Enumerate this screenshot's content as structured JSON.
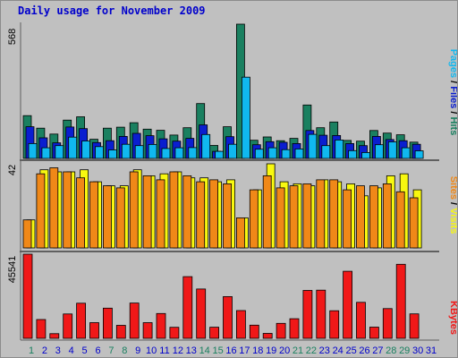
{
  "chart_title": "Daily usage for November 2009",
  "colors": {
    "background": "#c0c0c0",
    "hits": "#1a8060",
    "files": "#0a1ed0",
    "pages": "#10b8f0",
    "visits": "#f8f810",
    "sites": "#f08818",
    "kbytes": "#f01818",
    "separator": "#606060",
    "weekend_tick": "#1a8060",
    "weekday_tick": "#0000cc"
  },
  "chart_data": [
    {
      "type": "bar",
      "name": "hits-files-pages",
      "ymax_label": "568",
      "ylim": [
        0,
        568
      ],
      "categories": [
        "1",
        "2",
        "3",
        "4",
        "5",
        "6",
        "7",
        "8",
        "9",
        "10",
        "11",
        "12",
        "13",
        "14",
        "15",
        "16",
        "17",
        "18",
        "19",
        "20",
        "21",
        "22",
        "23",
        "24",
        "25",
        "26",
        "27",
        "28",
        "29",
        "30",
        "31"
      ],
      "series": [
        {
          "name": "Hits",
          "values": [
            181,
            128,
            103,
            162,
            176,
            81,
            128,
            132,
            151,
            124,
            119,
            99,
            130,
            232,
            55,
            134,
            568,
            77,
            91,
            75,
            85,
            226,
            130,
            154,
            76,
            73,
            118,
            107,
            100,
            69,
            0
          ]
        },
        {
          "name": "Files",
          "values": [
            134,
            87,
            66,
            133,
            126,
            67,
            75,
            93,
            106,
            96,
            83,
            73,
            85,
            142,
            30,
            92,
            0,
            58,
            71,
            68,
            63,
            118,
            98,
            97,
            63,
            54,
            93,
            80,
            75,
            60,
            0
          ]
        },
        {
          "name": "Pages",
          "values": [
            63,
            45,
            54,
            90,
            74,
            50,
            36,
            60,
            54,
            59,
            42,
            45,
            46,
            101,
            30,
            60,
            344,
            39,
            45,
            37,
            40,
            102,
            54,
            78,
            33,
            25,
            58,
            70,
            45,
            32,
            0
          ]
        }
      ],
      "right_label": [
        {
          "text": "Pages",
          "color": "#10b8f0"
        },
        {
          "text": " / ",
          "color": "#000000"
        },
        {
          "text": "Files",
          "color": "#0a1ed0"
        },
        {
          "text": " / ",
          "color": "#000000"
        },
        {
          "text": "Hits",
          "color": "#1a8060"
        }
      ]
    },
    {
      "type": "bar",
      "name": "visits-sites",
      "ymax_label": "42",
      "ylim": [
        0,
        42
      ],
      "categories": [
        "1",
        "2",
        "3",
        "4",
        "5",
        "6",
        "7",
        "8",
        "9",
        "10",
        "11",
        "12",
        "13",
        "14",
        "15",
        "16",
        "17",
        "18",
        "19",
        "20",
        "21",
        "22",
        "23",
        "24",
        "25",
        "26",
        "27",
        "28",
        "29",
        "30",
        "31"
      ],
      "series": [
        {
          "name": "Visits",
          "values": [
            14,
            39,
            38,
            38,
            39,
            33,
            31,
            31,
            39,
            36,
            37,
            38,
            35,
            35,
            33,
            34,
            15,
            29,
            42,
            33,
            32,
            31,
            34,
            33,
            32,
            26,
            30,
            36,
            37,
            29,
            0
          ]
        },
        {
          "name": "Sites",
          "values": [
            14,
            37,
            40,
            38,
            35,
            33,
            31,
            30,
            38,
            36,
            34,
            38,
            36,
            33,
            34,
            32,
            15,
            29,
            36,
            30,
            31,
            32,
            34,
            34,
            29,
            31,
            31,
            32,
            28,
            25,
            0
          ]
        }
      ],
      "right_label": [
        {
          "text": "Sites",
          "color": "#f08818"
        },
        {
          "text": " / ",
          "color": "#000000"
        },
        {
          "text": "Visits",
          "color": "#f8f810"
        }
      ]
    },
    {
      "type": "bar",
      "name": "kbytes",
      "ymax_label": "45541",
      "ylim": [
        0,
        45541
      ],
      "categories": [
        "1",
        "2",
        "3",
        "4",
        "5",
        "6",
        "7",
        "8",
        "9",
        "10",
        "11",
        "12",
        "13",
        "14",
        "15",
        "16",
        "17",
        "18",
        "19",
        "20",
        "21",
        "22",
        "23",
        "24",
        "25",
        "26",
        "27",
        "28",
        "29",
        "30",
        "31"
      ],
      "series": [
        {
          "name": "KBytes",
          "values": [
            45541,
            10159,
            2508,
            13188,
            18983,
            8479,
            16336,
            7043,
            19082,
            8477,
            13438,
            5941,
            33386,
            26709,
            5987,
            22566,
            15040,
            7137,
            2669,
            8081,
            10627,
            25937,
            26053,
            14904,
            36271,
            19472,
            6038,
            16106,
            40069,
            13207,
            0
          ]
        }
      ],
      "right_label": [
        {
          "text": "KBytes",
          "color": "#f01818"
        }
      ]
    }
  ],
  "x_axis": {
    "labels": [
      "1",
      "2",
      "3",
      "4",
      "5",
      "6",
      "7",
      "8",
      "9",
      "10",
      "11",
      "12",
      "13",
      "14",
      "15",
      "16",
      "17",
      "18",
      "19",
      "20",
      "21",
      "22",
      "23",
      "24",
      "25",
      "26",
      "27",
      "28",
      "29",
      "30",
      "31"
    ],
    "weekend": [
      1,
      7,
      8,
      14,
      15,
      21,
      22,
      28,
      29
    ]
  }
}
